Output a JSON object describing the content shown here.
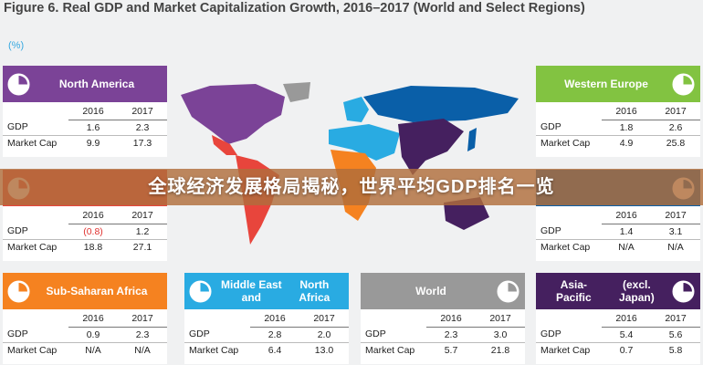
{
  "figure": {
    "title": "Figure 6. Real GDP and Market Capitalization Growth, 2016–2017 (World and Select Regions)",
    "unit": "(%)"
  },
  "banner": {
    "text": "全球经济发展格局揭秘，世界平均GDP排名一览"
  },
  "colors": {
    "north_america": "#7b4397",
    "western_europe": "#82c341",
    "latin_america": "#e8453c",
    "sub_saharan_africa": "#f58220",
    "middle_east": "#29abe2",
    "world": "#999999",
    "asia_pacific": "#45205f",
    "japan": "#0a5fa8"
  },
  "chart_data": {
    "type": "table",
    "title": "Figure 6. Real GDP and Market Capitalization Growth, 2016–2017 (World and Select Regions)",
    "columns": [
      "2016",
      "2017"
    ],
    "rows": [
      "GDP",
      "Market Cap"
    ],
    "panels": [
      {
        "id": "north_america",
        "name": "North America",
        "gdp": [
          "1.6",
          "2.3"
        ],
        "market_cap": [
          "9.9",
          "17.3"
        ]
      },
      {
        "id": "western_europe",
        "name": "Western Europe",
        "gdp": [
          "1.8",
          "2.6"
        ],
        "market_cap": [
          "4.9",
          "25.8"
        ]
      },
      {
        "id": "latin_america",
        "name": "",
        "gdp": [
          "(0.8)",
          "1.2"
        ],
        "market_cap": [
          "18.8",
          "27.1"
        ]
      },
      {
        "id": "japan",
        "name": "",
        "gdp": [
          "1.4",
          "3.1"
        ],
        "market_cap": [
          "N/A",
          "N/A"
        ]
      },
      {
        "id": "sub_saharan_africa",
        "name": "Sub-Saharan Africa",
        "gdp": [
          "0.9",
          "2.3"
        ],
        "market_cap": [
          "N/A",
          "N/A"
        ]
      },
      {
        "id": "middle_east",
        "name": "Middle East and\nNorth Africa",
        "gdp": [
          "2.8",
          "2.0"
        ],
        "market_cap": [
          "6.4",
          "13.0"
        ]
      },
      {
        "id": "world",
        "name": "World",
        "gdp": [
          "2.3",
          "3.0"
        ],
        "market_cap": [
          "5.7",
          "21.8"
        ]
      },
      {
        "id": "asia_pacific",
        "name": "Asia-Pacific\n(excl. Japan)",
        "gdp": [
          "5.4",
          "5.6"
        ],
        "market_cap": [
          "0.7",
          "5.8"
        ]
      }
    ]
  }
}
